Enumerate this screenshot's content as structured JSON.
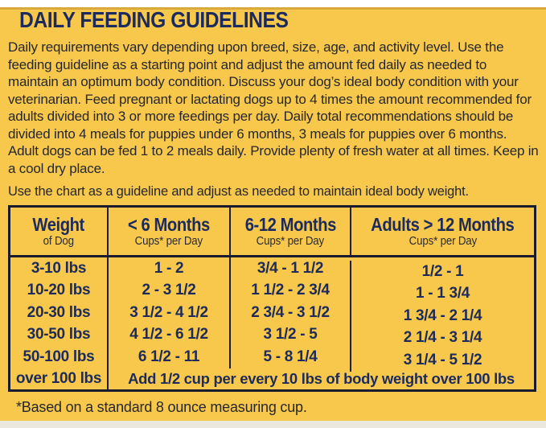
{
  "page": {
    "title": "DAILY FEEDING GUIDELINES",
    "intro": "Daily requirements vary depending upon breed, size, age, and activity level. Use the feeding guideline as a starting point and adjust the amount fed daily as needed to maintain an optimum body condition. Discuss your dog’s ideal body condition with your veterinarian. Feed pregnant or lactating dogs up to 4 times the amount recommended for adults divided into 3 or more feedings per day. Daily total recommendations should be divided into 4 meals for puppies under 6 months, 3 meals for puppies over 6 months. Adult dogs can be fed 1 to 2 meals daily. Provide plenty of fresh water at all times. Keep in a cool dry place.",
    "chart_note": "Use the chart as a guideline and adjust as needed to maintain ideal body weight.",
    "footnote": "*Based on a standard 8 ounce measuring cup."
  },
  "table": {
    "columns": [
      {
        "label": "Weight",
        "sublabel": "of Dog"
      },
      {
        "label": "< 6 Months",
        "sublabel": "Cups* per Day"
      },
      {
        "label": "6-12 Months",
        "sublabel": "Cups* per Day"
      },
      {
        "label": "Adults > 12 Months",
        "sublabel": "Cups* per Day"
      }
    ],
    "rows": [
      {
        "weight": "3-10 lbs",
        "under_6_months": "1 - 2",
        "months_6_12": "3/4 - 1 1/2",
        "adults": "1/2 - 1"
      },
      {
        "weight": "10-20 lbs",
        "under_6_months": "2 - 3 1/2",
        "months_6_12": "1 1/2 - 2 3/4",
        "adults": "1 - 1 3/4"
      },
      {
        "weight": "20-30 lbs",
        "under_6_months": "3 1/2 - 4 1/2",
        "months_6_12": "2 3/4 - 3 1/2",
        "adults": "1 3/4 - 2 1/4"
      },
      {
        "weight": "30-50 lbs",
        "under_6_months": "4 1/2 - 6 1/2",
        "months_6_12": "3 1/2 - 5",
        "adults": "2 1/4 - 3 1/4"
      },
      {
        "weight": "50-100 lbs",
        "under_6_months": "6 1/2 - 11",
        "months_6_12": "5 - 8 1/4",
        "adults": "3 1/4 - 5 1/2"
      }
    ],
    "last_row": {
      "weight": "over 100 lbs",
      "note": "Add 1/2 cup per every 10 lbs of body weight over 100 lbs"
    }
  },
  "colors": {
    "background": "#F7C84B",
    "navy": "#1D2B5C",
    "body_text": "#26272E",
    "table_border": "#1B1B2E",
    "top_strip": "#D9A93C",
    "bottom_strip": "#EBE8E0"
  }
}
